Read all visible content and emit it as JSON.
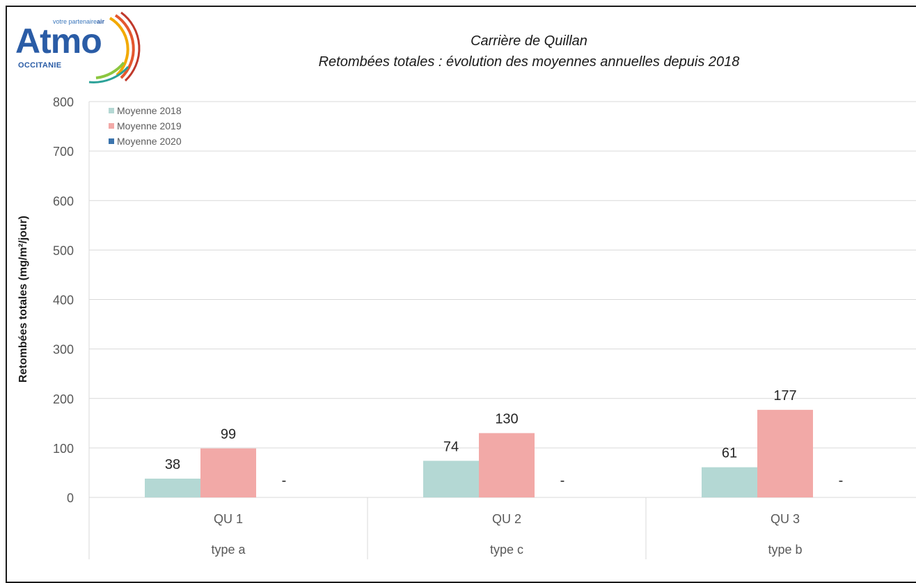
{
  "logo": {
    "word": "Atmo",
    "tagline_prefix": "votre partenaire",
    "tagline_bold": "air",
    "region": "OCCITANIE"
  },
  "colors": {
    "s2018": "#b4d8d4",
    "s2019": "#f2a9a7",
    "s2020": "#3b74ad",
    "grid": "#d9d9d9",
    "axis_text": "#595959",
    "label_text": "#262626"
  },
  "chart_data": {
    "type": "bar",
    "title": "Carrière de Quillan",
    "subtitle": "Retombées totales : évolution des moyennes annuelles depuis 2018",
    "ylabel": "Retombées totales (mg/m²/jour)",
    "ylim": [
      0,
      800
    ],
    "yticks": [
      0,
      100,
      200,
      300,
      400,
      500,
      600,
      700,
      800
    ],
    "grid": true,
    "legend_position": "top-left",
    "categories": [
      "QU 1",
      "QU 2",
      "QU 3"
    ],
    "category_types": [
      "type a",
      "type c",
      "type b"
    ],
    "series": [
      {
        "name": "Moyenne 2018",
        "values": [
          38,
          74,
          61
        ]
      },
      {
        "name": "Moyenne 2019",
        "values": [
          99,
          130,
          177
        ]
      },
      {
        "name": "Moyenne 2020",
        "values": [
          null,
          null,
          null
        ],
        "labels": [
          "-",
          "-",
          "-"
        ]
      }
    ]
  }
}
